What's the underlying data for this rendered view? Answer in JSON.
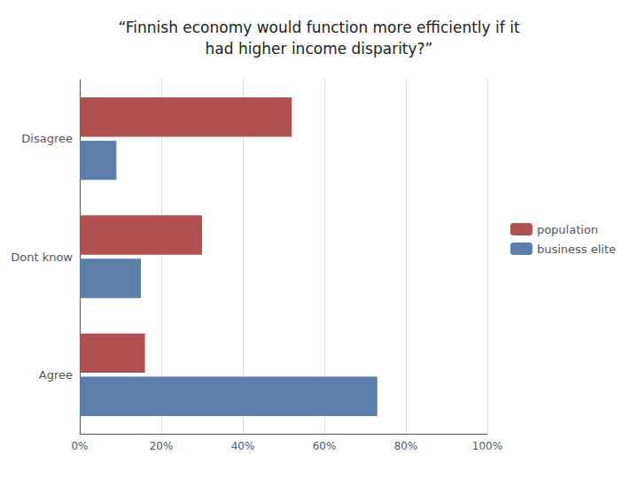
{
  "chart_data": {
    "type": "bar",
    "orientation": "horizontal",
    "title": "“Finnish economy would function more efficiently if it\nhad higher income disparity?”",
    "categories": [
      "Disagree",
      "Dont know",
      "Agree"
    ],
    "series": [
      {
        "name": "population",
        "color": "#b05050",
        "values": [
          0.52,
          0.3,
          0.16
        ]
      },
      {
        "name": "business elite",
        "color": "#5b7faa",
        "values": [
          0.09,
          0.15,
          0.73
        ]
      }
    ],
    "xlim": [
      0,
      1.0
    ],
    "xticks": [
      {
        "value": 0.0,
        "label": "0%"
      },
      {
        "value": 0.2,
        "label": "20%"
      },
      {
        "value": 0.4,
        "label": "40%"
      },
      {
        "value": 0.6,
        "label": "60%"
      },
      {
        "value": 0.8,
        "label": "80%"
      },
      {
        "value": 1.0,
        "label": "100%"
      }
    ],
    "grid": true,
    "legend": "right"
  }
}
